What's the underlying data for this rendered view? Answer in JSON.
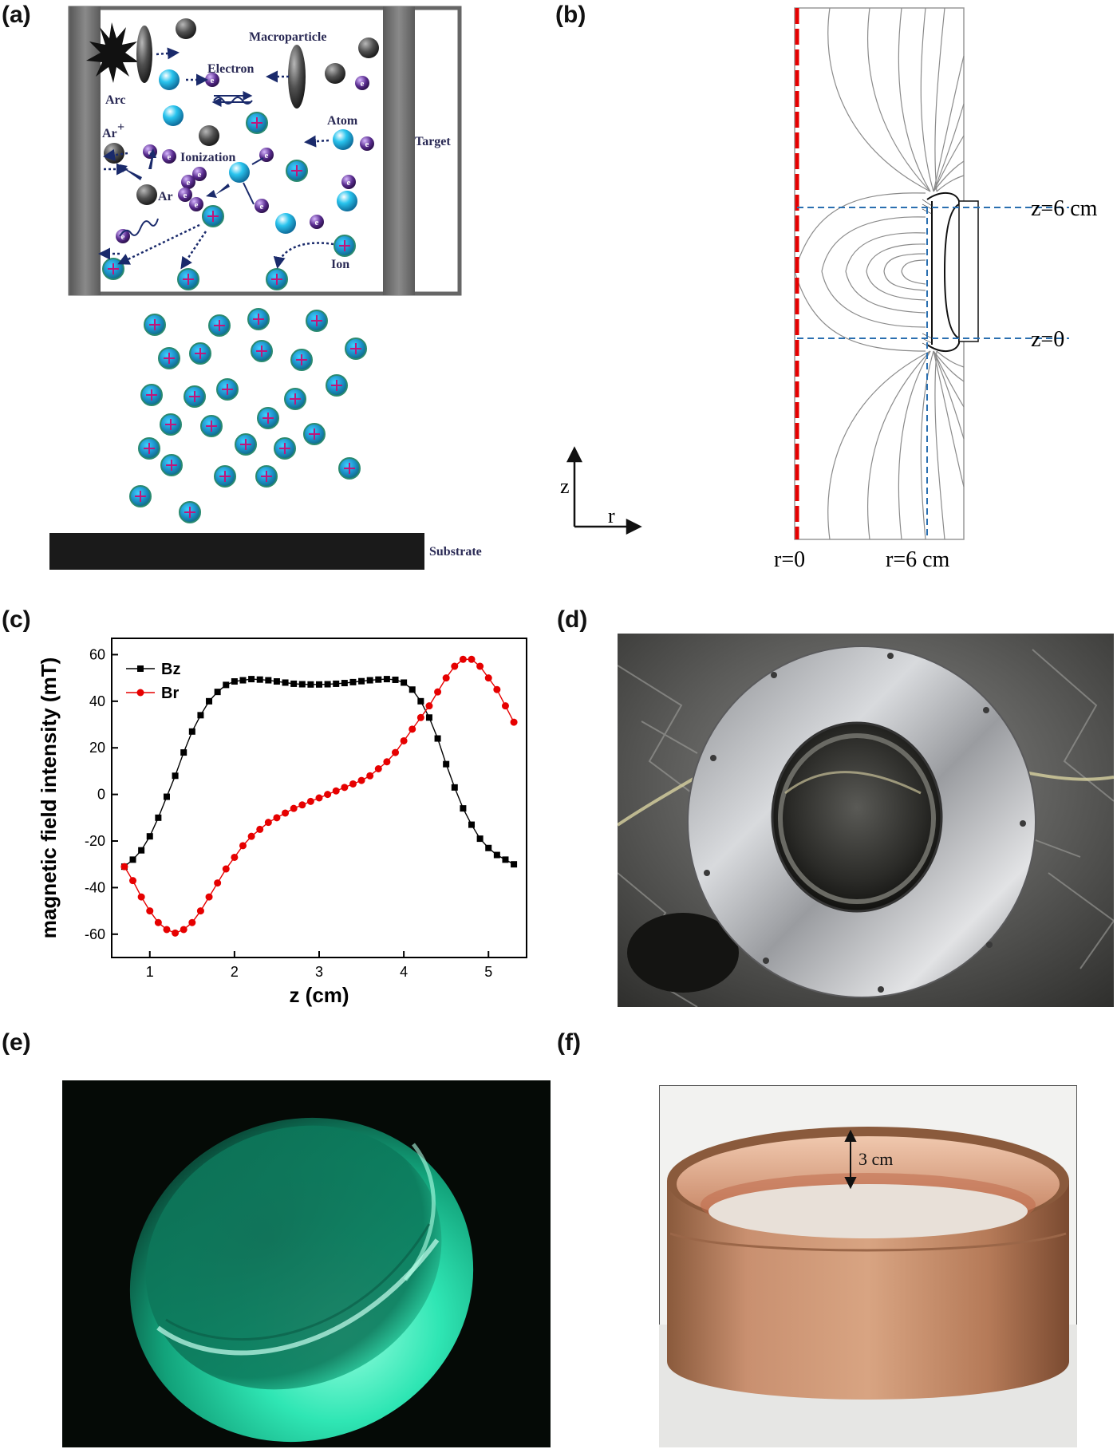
{
  "panels": {
    "a": "(a)",
    "b": "(b)",
    "c": "(c)",
    "d": "(d)",
    "e": "(e)",
    "f": "(f)"
  },
  "diagram_a": {
    "macroparticle": "Macroparticle",
    "electron": "Electron",
    "arc": "Arc",
    "atom": "Atom",
    "target": "Target",
    "ar_plus": "Ar",
    "ar_plus_sup": "+",
    "ionization": "Ionization",
    "ar": "Ar",
    "ion": "Ion",
    "substrate": "Substrate",
    "electron_symbol": "e",
    "ion_symbol": "+"
  },
  "diagram_b": {
    "z_top": "z=6 cm",
    "z_bottom": "z=0",
    "r_zero": "r=0",
    "r_six": "r=6 cm",
    "axis_z": "z",
    "axis_r": "r"
  },
  "photo_f": {
    "dimension": "3 cm"
  },
  "chart_data": {
    "type": "line",
    "title": "",
    "xlabel": "z (cm)",
    "ylabel": "magnetic field intensity (mT)",
    "xlim": [
      0.55,
      5.45
    ],
    "ylim": [
      -70,
      67
    ],
    "xticks": [
      1,
      2,
      3,
      4,
      5
    ],
    "yticks": [
      -60,
      -40,
      -20,
      0,
      20,
      40,
      60
    ],
    "legend_position": "top-left",
    "grid": false,
    "series": [
      {
        "name": "Bz",
        "color": "#000000",
        "marker": "square",
        "x": [
          0.7,
          0.8,
          0.9,
          1.0,
          1.1,
          1.2,
          1.3,
          1.4,
          1.5,
          1.6,
          1.7,
          1.8,
          1.9,
          2.0,
          2.1,
          2.2,
          2.3,
          2.4,
          2.5,
          2.6,
          2.7,
          2.8,
          2.9,
          3.0,
          3.1,
          3.2,
          3.3,
          3.4,
          3.5,
          3.6,
          3.7,
          3.8,
          3.9,
          4.0,
          4.1,
          4.2,
          4.3,
          4.4,
          4.5,
          4.6,
          4.7,
          4.8,
          4.9,
          5.0,
          5.1,
          5.2,
          5.3
        ],
        "y": [
          -31,
          -28,
          -24,
          -18,
          -10,
          -1,
          8,
          18,
          27,
          34,
          40,
          44,
          47,
          48.5,
          49,
          49.5,
          49.3,
          49,
          48.5,
          48,
          47.5,
          47.3,
          47.2,
          47.2,
          47.3,
          47.5,
          47.8,
          48.2,
          48.6,
          49,
          49.3,
          49.5,
          49.2,
          48,
          45,
          40,
          33,
          24,
          13,
          3,
          -6,
          -13,
          -19,
          -23,
          -26,
          -28,
          -30
        ]
      },
      {
        "name": "Br",
        "color": "#e60000",
        "marker": "circle",
        "x": [
          0.7,
          0.8,
          0.9,
          1.0,
          1.1,
          1.2,
          1.3,
          1.4,
          1.5,
          1.6,
          1.7,
          1.8,
          1.9,
          2.0,
          2.1,
          2.2,
          2.3,
          2.4,
          2.5,
          2.6,
          2.7,
          2.8,
          2.9,
          3.0,
          3.1,
          3.2,
          3.3,
          3.4,
          3.5,
          3.6,
          3.7,
          3.8,
          3.9,
          4.0,
          4.1,
          4.2,
          4.3,
          4.4,
          4.5,
          4.6,
          4.7,
          4.8,
          4.9,
          5.0,
          5.1,
          5.2,
          5.3
        ],
        "y": [
          -31,
          -37,
          -44,
          -50,
          -55,
          -58,
          -59.5,
          -58,
          -55,
          -50,
          -44,
          -38,
          -32,
          -27,
          -22,
          -18,
          -15,
          -12,
          -10,
          -8,
          -6,
          -4.5,
          -3,
          -1.5,
          0,
          1.5,
          3,
          4.5,
          6,
          8,
          11,
          14,
          18,
          23,
          28,
          33,
          38,
          44,
          50,
          55,
          58,
          58,
          55,
          50,
          45,
          38,
          31
        ]
      }
    ]
  }
}
